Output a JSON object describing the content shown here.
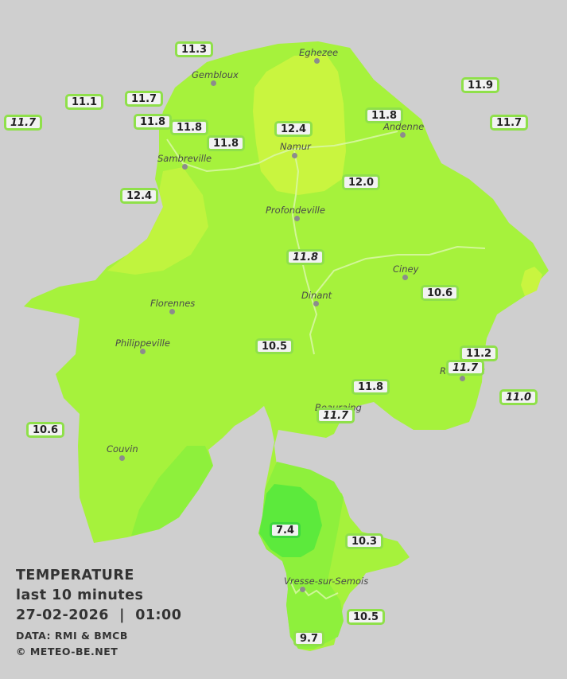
{
  "colors": {
    "background": "#cfcfcf",
    "zone_base": "#a6f23c",
    "zone_warm": "#c9f53f",
    "zone_cool": "#8ef03c",
    "zone_cold": "#5cea3c",
    "border_normal": "#8fe04a",
    "border_cold": "#3ed63e"
  },
  "cities": [
    {
      "name": "Eghezee"
    },
    {
      "name": "Gembloux"
    },
    {
      "name": "Andenne"
    },
    {
      "name": "Namur"
    },
    {
      "name": "Sambreville"
    },
    {
      "name": "Profondeville"
    },
    {
      "name": "Ciney"
    },
    {
      "name": "Dinant"
    },
    {
      "name": "Florennes"
    },
    {
      "name": "Philippeville"
    },
    {
      "name": "Couvin"
    },
    {
      "name": "Vresse-sur-Semois"
    },
    {
      "name": "Beauraing"
    },
    {
      "name": "Rochefort"
    }
  ],
  "stations": [
    {
      "value": "11.3"
    },
    {
      "value": "11.1"
    },
    {
      "value": "11.7"
    },
    {
      "value": "11.7"
    },
    {
      "value": "11.8"
    },
    {
      "value": "11.8"
    },
    {
      "value": "11.8"
    },
    {
      "value": "12.4"
    },
    {
      "value": "11.8"
    },
    {
      "value": "11.9"
    },
    {
      "value": "11.7"
    },
    {
      "value": "12.4"
    },
    {
      "value": "12.0"
    },
    {
      "value": "11.8"
    },
    {
      "value": "10.6"
    },
    {
      "value": "10.5"
    },
    {
      "value": "11.2"
    },
    {
      "value": "11.7"
    },
    {
      "value": "11.8"
    },
    {
      "value": "11.0"
    },
    {
      "value": "11.7"
    },
    {
      "value": "10.6"
    },
    {
      "value": "7.4"
    },
    {
      "value": "10.3"
    },
    {
      "value": "10.5"
    },
    {
      "value": "9.7"
    }
  ],
  "legend": {
    "title": "TEMPERATURE",
    "period": "last 10 minutes",
    "datetime": "27-02-2026  |  01:00",
    "data_source": "DATA: RMI & BMCB",
    "copyright": "© METEO-BE.NET"
  }
}
